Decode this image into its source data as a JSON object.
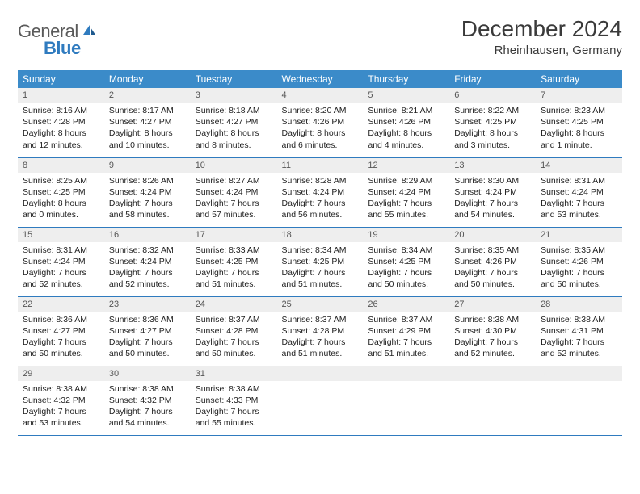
{
  "logo": {
    "text_gray": "General",
    "text_blue": "Blue"
  },
  "title": "December 2024",
  "location": "Rheinhausen, Germany",
  "colors": {
    "header_bg": "#3b8bc9",
    "header_text": "#ffffff",
    "daynum_bg": "#eeeeee",
    "border": "#2f7bbf",
    "logo_gray": "#5a5a5a",
    "logo_blue": "#2f7bbf"
  },
  "typography": {
    "title_fontsize": 28,
    "location_fontsize": 15,
    "dayheader_fontsize": 12,
    "daynum_fontsize": 11,
    "body_fontsize": 10.5
  },
  "day_headers": [
    "Sunday",
    "Monday",
    "Tuesday",
    "Wednesday",
    "Thursday",
    "Friday",
    "Saturday"
  ],
  "weeks": [
    [
      {
        "n": "1",
        "sunrise": "8:16 AM",
        "sunset": "4:28 PM",
        "daylight": "8 hours and 12 minutes."
      },
      {
        "n": "2",
        "sunrise": "8:17 AM",
        "sunset": "4:27 PM",
        "daylight": "8 hours and 10 minutes."
      },
      {
        "n": "3",
        "sunrise": "8:18 AM",
        "sunset": "4:27 PM",
        "daylight": "8 hours and 8 minutes."
      },
      {
        "n": "4",
        "sunrise": "8:20 AM",
        "sunset": "4:26 PM",
        "daylight": "8 hours and 6 minutes."
      },
      {
        "n": "5",
        "sunrise": "8:21 AM",
        "sunset": "4:26 PM",
        "daylight": "8 hours and 4 minutes."
      },
      {
        "n": "6",
        "sunrise": "8:22 AM",
        "sunset": "4:25 PM",
        "daylight": "8 hours and 3 minutes."
      },
      {
        "n": "7",
        "sunrise": "8:23 AM",
        "sunset": "4:25 PM",
        "daylight": "8 hours and 1 minute."
      }
    ],
    [
      {
        "n": "8",
        "sunrise": "8:25 AM",
        "sunset": "4:25 PM",
        "daylight": "8 hours and 0 minutes."
      },
      {
        "n": "9",
        "sunrise": "8:26 AM",
        "sunset": "4:24 PM",
        "daylight": "7 hours and 58 minutes."
      },
      {
        "n": "10",
        "sunrise": "8:27 AM",
        "sunset": "4:24 PM",
        "daylight": "7 hours and 57 minutes."
      },
      {
        "n": "11",
        "sunrise": "8:28 AM",
        "sunset": "4:24 PM",
        "daylight": "7 hours and 56 minutes."
      },
      {
        "n": "12",
        "sunrise": "8:29 AM",
        "sunset": "4:24 PM",
        "daylight": "7 hours and 55 minutes."
      },
      {
        "n": "13",
        "sunrise": "8:30 AM",
        "sunset": "4:24 PM",
        "daylight": "7 hours and 54 minutes."
      },
      {
        "n": "14",
        "sunrise": "8:31 AM",
        "sunset": "4:24 PM",
        "daylight": "7 hours and 53 minutes."
      }
    ],
    [
      {
        "n": "15",
        "sunrise": "8:31 AM",
        "sunset": "4:24 PM",
        "daylight": "7 hours and 52 minutes."
      },
      {
        "n": "16",
        "sunrise": "8:32 AM",
        "sunset": "4:24 PM",
        "daylight": "7 hours and 52 minutes."
      },
      {
        "n": "17",
        "sunrise": "8:33 AM",
        "sunset": "4:25 PM",
        "daylight": "7 hours and 51 minutes."
      },
      {
        "n": "18",
        "sunrise": "8:34 AM",
        "sunset": "4:25 PM",
        "daylight": "7 hours and 51 minutes."
      },
      {
        "n": "19",
        "sunrise": "8:34 AM",
        "sunset": "4:25 PM",
        "daylight": "7 hours and 50 minutes."
      },
      {
        "n": "20",
        "sunrise": "8:35 AM",
        "sunset": "4:26 PM",
        "daylight": "7 hours and 50 minutes."
      },
      {
        "n": "21",
        "sunrise": "8:35 AM",
        "sunset": "4:26 PM",
        "daylight": "7 hours and 50 minutes."
      }
    ],
    [
      {
        "n": "22",
        "sunrise": "8:36 AM",
        "sunset": "4:27 PM",
        "daylight": "7 hours and 50 minutes."
      },
      {
        "n": "23",
        "sunrise": "8:36 AM",
        "sunset": "4:27 PM",
        "daylight": "7 hours and 50 minutes."
      },
      {
        "n": "24",
        "sunrise": "8:37 AM",
        "sunset": "4:28 PM",
        "daylight": "7 hours and 50 minutes."
      },
      {
        "n": "25",
        "sunrise": "8:37 AM",
        "sunset": "4:28 PM",
        "daylight": "7 hours and 51 minutes."
      },
      {
        "n": "26",
        "sunrise": "8:37 AM",
        "sunset": "4:29 PM",
        "daylight": "7 hours and 51 minutes."
      },
      {
        "n": "27",
        "sunrise": "8:38 AM",
        "sunset": "4:30 PM",
        "daylight": "7 hours and 52 minutes."
      },
      {
        "n": "28",
        "sunrise": "8:38 AM",
        "sunset": "4:31 PM",
        "daylight": "7 hours and 52 minutes."
      }
    ],
    [
      {
        "n": "29",
        "sunrise": "8:38 AM",
        "sunset": "4:32 PM",
        "daylight": "7 hours and 53 minutes."
      },
      {
        "n": "30",
        "sunrise": "8:38 AM",
        "sunset": "4:32 PM",
        "daylight": "7 hours and 54 minutes."
      },
      {
        "n": "31",
        "sunrise": "8:38 AM",
        "sunset": "4:33 PM",
        "daylight": "7 hours and 55 minutes."
      },
      null,
      null,
      null,
      null
    ]
  ],
  "labels": {
    "sunrise": "Sunrise:",
    "sunset": "Sunset:",
    "daylight": "Daylight:"
  }
}
